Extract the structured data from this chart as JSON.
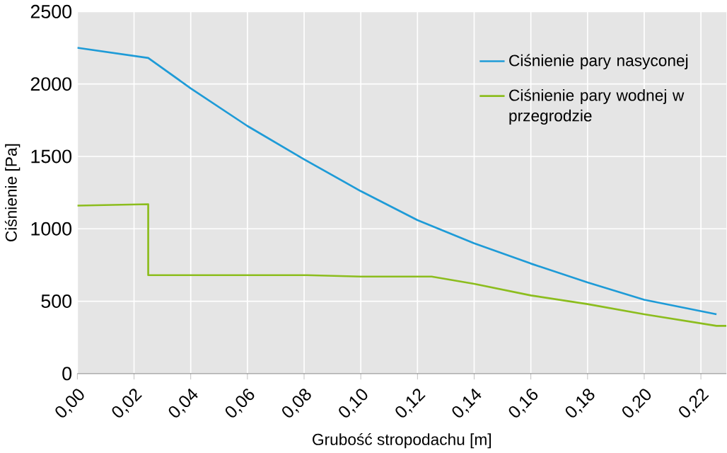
{
  "chart_data": {
    "type": "line",
    "xlabel": "Grubość stropodachu [m]",
    "ylabel": "Ciśnienie [Pa]",
    "xlim": [
      0,
      0.229
    ],
    "ylim": [
      0,
      2500
    ],
    "xticks": [
      {
        "value": 0,
        "label": "0,00"
      },
      {
        "value": 0.02,
        "label": "0,02"
      },
      {
        "value": 0.04,
        "label": "0,04"
      },
      {
        "value": 0.06,
        "label": "0,06"
      },
      {
        "value": 0.08,
        "label": "0,08"
      },
      {
        "value": 0.1,
        "label": "0,10"
      },
      {
        "value": 0.12,
        "label": "0,12"
      },
      {
        "value": 0.14,
        "label": "0,14"
      },
      {
        "value": 0.16,
        "label": "0,16"
      },
      {
        "value": 0.18,
        "label": "0,18"
      },
      {
        "value": 0.2,
        "label": "0,20"
      },
      {
        "value": 0.22,
        "label": "0,22"
      }
    ],
    "yticks": [
      0,
      500,
      1000,
      1500,
      2000,
      2500
    ],
    "grid": true,
    "legend": "top right",
    "series": [
      {
        "name": "Ciśnienie pary nasyconej",
        "color": "#1e9bd7",
        "x": [
          0,
          0.025,
          0.04,
          0.06,
          0.08,
          0.1,
          0.12,
          0.14,
          0.16,
          0.18,
          0.2,
          0.2255
        ],
        "values": [
          2250,
          2180,
          1970,
          1710,
          1480,
          1260,
          1060,
          900,
          760,
          630,
          510,
          410
        ]
      },
      {
        "name": "Ciśnienie pary wodnej w przegrodzie",
        "color": "#8cbd1e",
        "x": [
          0,
          0.025,
          0.025,
          0.081,
          0.1,
          0.125,
          0.14,
          0.16,
          0.18,
          0.2,
          0.2255,
          0.229
        ],
        "values": [
          1160,
          1170,
          680,
          680,
          670,
          670,
          620,
          540,
          480,
          410,
          330,
          330
        ]
      }
    ]
  }
}
